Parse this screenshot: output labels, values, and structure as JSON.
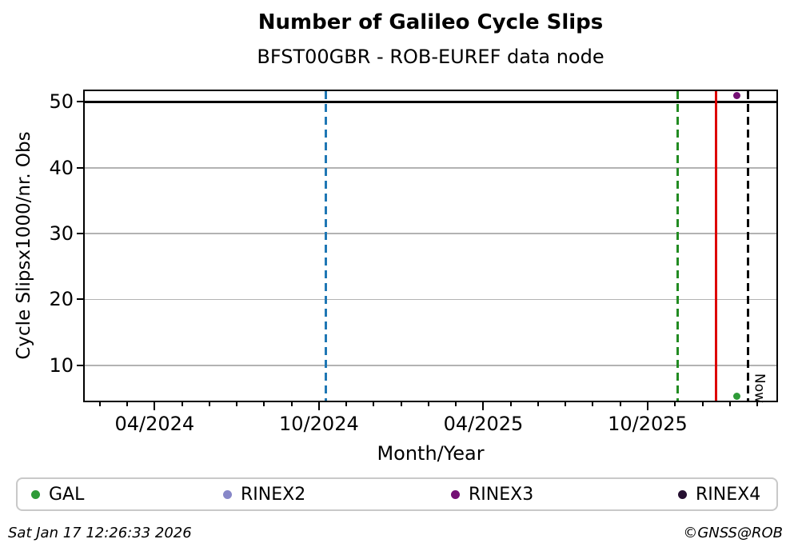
{
  "header": {
    "title": "Number of Galileo Cycle Slips",
    "subtitle": "BFST00GBR - ROB-EUREF data node"
  },
  "footer": {
    "timestamp": "Sat Jan 17 12:26:33 2026",
    "copyright": "©GNSS@ROB"
  },
  "legend": [
    {
      "label": "GAL",
      "color": "#2e9b38"
    },
    {
      "label": "RINEX2",
      "color": "#8787c8"
    },
    {
      "label": "RINEX3",
      "color": "#740f74"
    },
    {
      "label": "RINEX4",
      "color": "#261031"
    }
  ],
  "chart_data": {
    "type": "scatter",
    "title": "Number of Galileo Cycle Slips",
    "subtitle": "BFST00GBR - ROB-EUREF data node",
    "xlabel": "Month/Year",
    "ylabel": "Cycle Slipsx1000/nr. Obs",
    "x_axis": {
      "unit": "months since 2024-01",
      "range": [
        0.45,
        25.7
      ],
      "major_ticks": [
        {
          "pos": 3,
          "label": "04/2024"
        },
        {
          "pos": 9,
          "label": "10/2024"
        },
        {
          "pos": 15,
          "label": "04/2025"
        },
        {
          "pos": 21,
          "label": "10/2025"
        }
      ],
      "minor_tick_interval_months": 1
    },
    "y_axis": {
      "range": [
        4.6,
        51.6
      ],
      "ticks": [
        10,
        20,
        30,
        40,
        50
      ],
      "grid": true,
      "grid_color": "#b3b3b3"
    },
    "threshold_line": {
      "y": 50,
      "color": "#000000",
      "style": "solid"
    },
    "vlines": [
      {
        "name": "blue-event",
        "x": 9.26,
        "approx_date": "2024-10",
        "style": "dashed",
        "color": "#1f77b4"
      },
      {
        "name": "green-event",
        "x": 22.1,
        "approx_date": "2025-11",
        "style": "dashed",
        "color": "#228b22"
      },
      {
        "name": "red-event",
        "x": 23.5,
        "approx_date": "2025-12",
        "style": "solid",
        "color": "#dd0000"
      },
      {
        "name": "now",
        "x": 24.67,
        "approx_date": "2026-01",
        "style": "dashed",
        "color": "#000000",
        "label": "Now"
      }
    ],
    "points": [
      {
        "series": "RINEX3",
        "x": 24.25,
        "approx_date": "2026-01",
        "y": 50.9,
        "color": "#740f74"
      },
      {
        "series": "GAL",
        "x": 24.25,
        "approx_date": "2026-01",
        "y": 5.3,
        "color": "#2e9b38"
      }
    ],
    "legend_entries": [
      "GAL",
      "RINEX2",
      "RINEX3",
      "RINEX4"
    ],
    "legend_position": "below"
  }
}
